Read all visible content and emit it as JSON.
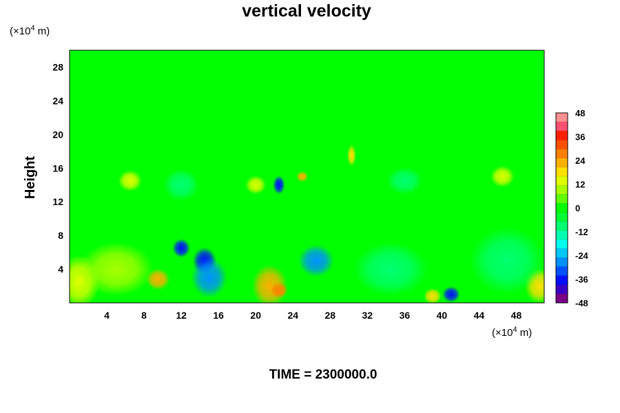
{
  "chart_data": {
    "type": "heatmap",
    "title": "vertical velocity",
    "ylabel": "Height",
    "xunit_prefix": "(×10",
    "xunit_exp": "4",
    "xunit_suffix": " m)",
    "yunit_prefix": "(×10",
    "yunit_exp": "4",
    "yunit_suffix": " m)",
    "xlim": [
      0,
      51
    ],
    "ylim": [
      0,
      30
    ],
    "xticks": [
      4,
      8,
      12,
      16,
      20,
      24,
      28,
      32,
      36,
      40,
      44,
      48
    ],
    "yticks": [
      4,
      8,
      12,
      16,
      20,
      24,
      28
    ],
    "colorbar": {
      "range": [
        -48,
        48
      ],
      "ticks": [
        48,
        36,
        24,
        12,
        0,
        -12,
        -24,
        -36,
        -48
      ],
      "colors": [
        "#7a0088",
        "#3a00c8",
        "#0010ff",
        "#0050ff",
        "#0090ff",
        "#00c8ff",
        "#00ffee",
        "#00ffb0",
        "#00ff70",
        "#00ff30",
        "#00ff00",
        "#60ff00",
        "#a8ff00",
        "#e0ff00",
        "#ffe000",
        "#ffb000",
        "#ff8000",
        "#ff5000",
        "#ff2000",
        "#ff5070",
        "#ff9090"
      ]
    },
    "background_value": 0,
    "features": [
      {
        "x": 12.0,
        "y": 6.5,
        "v": -38,
        "rx": 0.6,
        "ry": 0.7
      },
      {
        "x": 14.5,
        "y": 5.0,
        "v": -40,
        "rx": 0.8,
        "ry": 1.0
      },
      {
        "x": 15.0,
        "y": 3.0,
        "v": -28,
        "rx": 1.2,
        "ry": 1.5
      },
      {
        "x": 22.5,
        "y": 14.0,
        "v": -40,
        "rx": 0.4,
        "ry": 0.7
      },
      {
        "x": 26.5,
        "y": 5.0,
        "v": -30,
        "rx": 1.2,
        "ry": 1.2
      },
      {
        "x": 41.0,
        "y": 1.0,
        "v": -40,
        "rx": 0.6,
        "ry": 0.6
      },
      {
        "x": 21.5,
        "y": 2.0,
        "v": 24,
        "rx": 1.2,
        "ry": 1.6
      },
      {
        "x": 22.5,
        "y": 1.5,
        "v": 30,
        "rx": 0.6,
        "ry": 0.6
      },
      {
        "x": 9.5,
        "y": 2.8,
        "v": 22,
        "rx": 0.8,
        "ry": 0.8
      },
      {
        "x": 1.0,
        "y": 2.5,
        "v": 16,
        "rx": 1.4,
        "ry": 2.0
      },
      {
        "x": 25.0,
        "y": 15.0,
        "v": 24,
        "rx": 0.4,
        "ry": 0.4
      },
      {
        "x": 30.3,
        "y": 17.5,
        "v": 18,
        "rx": 0.3,
        "ry": 0.8
      },
      {
        "x": 39.0,
        "y": 0.8,
        "v": 18,
        "rx": 0.6,
        "ry": 0.6
      },
      {
        "x": 50.5,
        "y": 2.0,
        "v": 18,
        "rx": 1.0,
        "ry": 1.3
      },
      {
        "x": 5.0,
        "y": 4.0,
        "v": 10,
        "rx": 2.5,
        "ry": 2.0
      },
      {
        "x": 34.5,
        "y": 4.0,
        "v": -10,
        "rx": 2.5,
        "ry": 2.0
      },
      {
        "x": 47.0,
        "y": 5.0,
        "v": -12,
        "rx": 2.5,
        "ry": 2.5
      },
      {
        "x": 6.5,
        "y": 14.5,
        "v": 14,
        "rx": 0.8,
        "ry": 0.8
      },
      {
        "x": 20.0,
        "y": 14.0,
        "v": 12,
        "rx": 0.7,
        "ry": 0.7
      },
      {
        "x": 12.0,
        "y": 14.0,
        "v": -8,
        "rx": 1.2,
        "ry": 1.2
      },
      {
        "x": 36.0,
        "y": 14.5,
        "v": -10,
        "rx": 1.2,
        "ry": 1.0
      },
      {
        "x": 46.5,
        "y": 15.0,
        "v": 14,
        "rx": 0.8,
        "ry": 0.8
      }
    ]
  },
  "footer": {
    "time_label": "TIME = 2300000.0"
  }
}
